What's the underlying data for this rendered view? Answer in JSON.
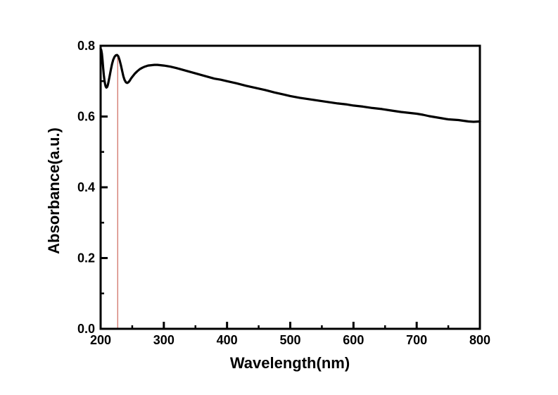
{
  "colors": {
    "background": "#ffffff",
    "axis": "#000000",
    "curve": "#000000",
    "marker_line": "#cc665c"
  },
  "chart_data": {
    "type": "line",
    "title": "",
    "xlabel": "Wavelength(nm)",
    "ylabel": "Absorbance(a.u.)",
    "xlim": [
      200,
      800
    ],
    "ylim": [
      0.0,
      0.8
    ],
    "grid": false,
    "legend": "none",
    "x_tick_labels": [
      "200",
      "300",
      "400",
      "500",
      "600",
      "700",
      "800"
    ],
    "y_tick_labels": [
      "0.0",
      "0.2",
      "0.4",
      "0.6",
      "0.8"
    ],
    "x_major_ticks": [
      200,
      300,
      400,
      500,
      600,
      700,
      800
    ],
    "x_minor_ticks": [
      250,
      350,
      450,
      550,
      650,
      750
    ],
    "y_major_ticks": [
      0.0,
      0.2,
      0.4,
      0.6,
      0.8
    ],
    "y_minor_ticks": [
      0.1,
      0.3,
      0.5,
      0.7
    ],
    "annotation_line": {
      "x": 227,
      "y_top": 0.772,
      "color": "#cc665c"
    },
    "series": [
      {
        "name": "absorbance",
        "color": "#000000",
        "points": [
          [
            200,
            0.792
          ],
          [
            201,
            0.788
          ],
          [
            202,
            0.778
          ],
          [
            203,
            0.76
          ],
          [
            204,
            0.738
          ],
          [
            205,
            0.718
          ],
          [
            206,
            0.703
          ],
          [
            207,
            0.692
          ],
          [
            208,
            0.685
          ],
          [
            209,
            0.682
          ],
          [
            210,
            0.683
          ],
          [
            211,
            0.687
          ],
          [
            212,
            0.694
          ],
          [
            214,
            0.712
          ],
          [
            216,
            0.731
          ],
          [
            218,
            0.748
          ],
          [
            220,
            0.761
          ],
          [
            222,
            0.769
          ],
          [
            224,
            0.773
          ],
          [
            226,
            0.774
          ],
          [
            228,
            0.77
          ],
          [
            230,
            0.76
          ],
          [
            232,
            0.746
          ],
          [
            234,
            0.73
          ],
          [
            236,
            0.714
          ],
          [
            238,
            0.703
          ],
          [
            240,
            0.697
          ],
          [
            242,
            0.695
          ],
          [
            244,
            0.697
          ],
          [
            246,
            0.701
          ],
          [
            248,
            0.707
          ],
          [
            250,
            0.712
          ],
          [
            254,
            0.721
          ],
          [
            258,
            0.728
          ],
          [
            262,
            0.734
          ],
          [
            266,
            0.738
          ],
          [
            270,
            0.741
          ],
          [
            275,
            0.744
          ],
          [
            280,
            0.745
          ],
          [
            285,
            0.746
          ],
          [
            290,
            0.746
          ],
          [
            295,
            0.745
          ],
          [
            300,
            0.744
          ],
          [
            310,
            0.741
          ],
          [
            320,
            0.737
          ],
          [
            330,
            0.732
          ],
          [
            340,
            0.727
          ],
          [
            350,
            0.722
          ],
          [
            360,
            0.717
          ],
          [
            370,
            0.712
          ],
          [
            380,
            0.707
          ],
          [
            390,
            0.704
          ],
          [
            400,
            0.7
          ],
          [
            415,
            0.694
          ],
          [
            430,
            0.687
          ],
          [
            445,
            0.681
          ],
          [
            460,
            0.675
          ],
          [
            475,
            0.668
          ],
          [
            490,
            0.662
          ],
          [
            500,
            0.658
          ],
          [
            515,
            0.653
          ],
          [
            530,
            0.649
          ],
          [
            545,
            0.645
          ],
          [
            560,
            0.641
          ],
          [
            575,
            0.637
          ],
          [
            590,
            0.634
          ],
          [
            600,
            0.631
          ],
          [
            615,
            0.628
          ],
          [
            630,
            0.624
          ],
          [
            645,
            0.621
          ],
          [
            660,
            0.617
          ],
          [
            675,
            0.613
          ],
          [
            690,
            0.61
          ],
          [
            700,
            0.608
          ],
          [
            710,
            0.605
          ],
          [
            720,
            0.601
          ],
          [
            730,
            0.598
          ],
          [
            740,
            0.595
          ],
          [
            750,
            0.592
          ],
          [
            758,
            0.591
          ],
          [
            766,
            0.59
          ],
          [
            774,
            0.588
          ],
          [
            782,
            0.586
          ],
          [
            790,
            0.585
          ],
          [
            800,
            0.586
          ]
        ]
      }
    ]
  }
}
